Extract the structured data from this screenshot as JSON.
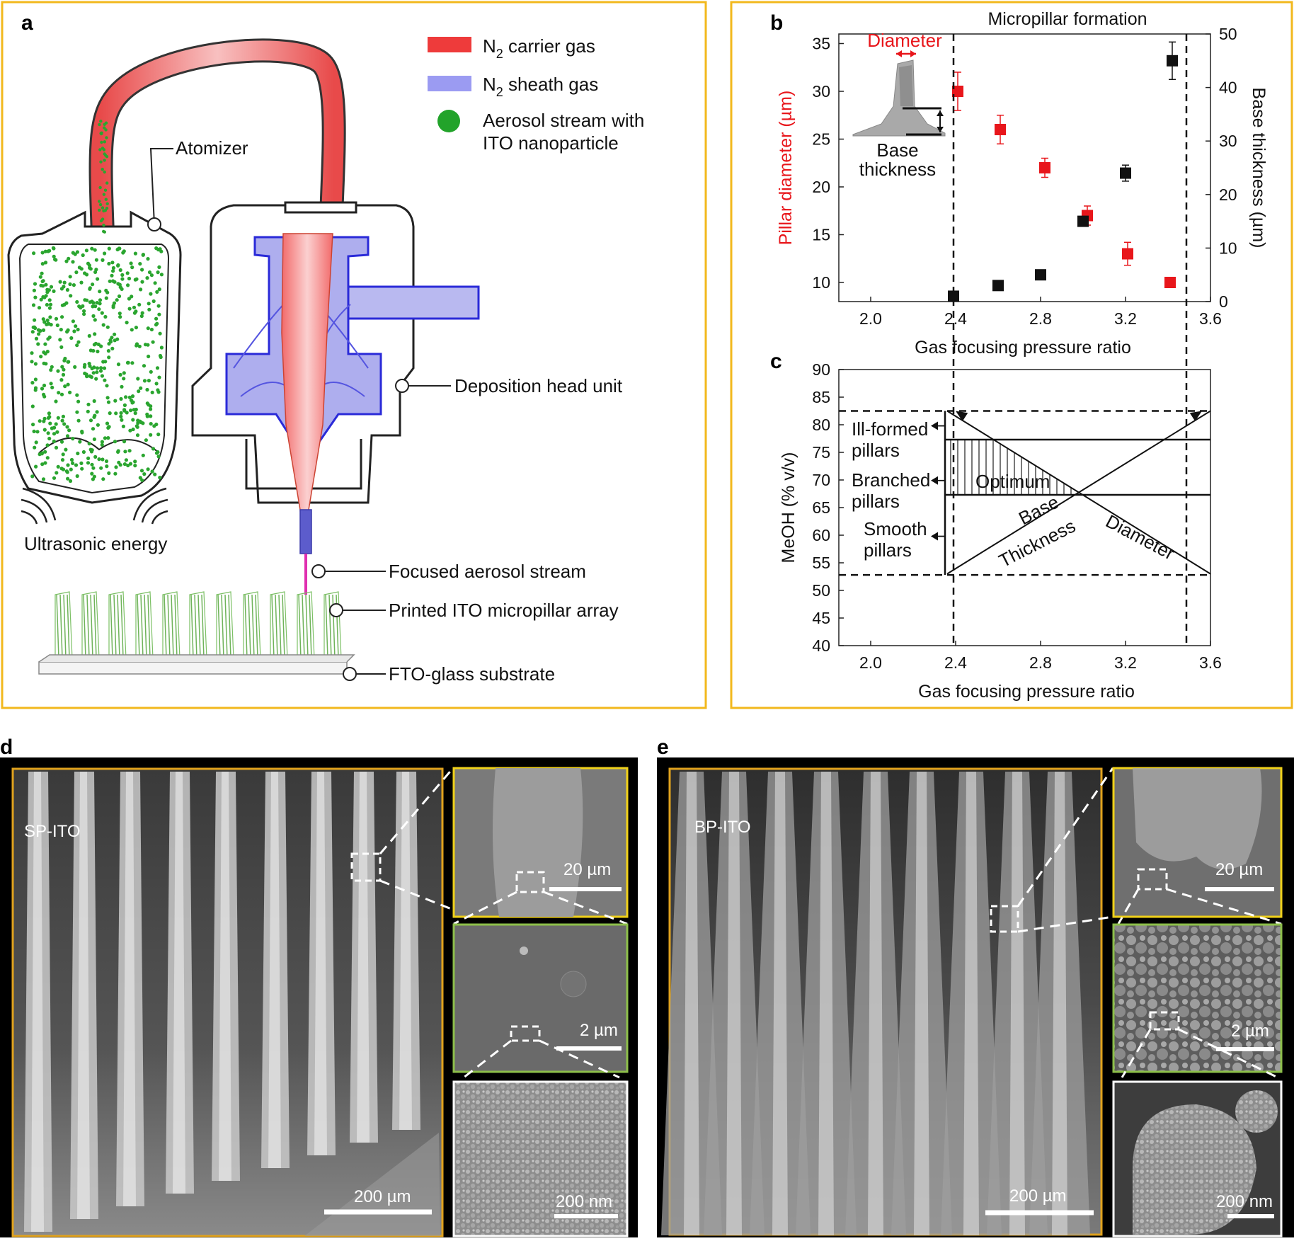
{
  "figure": {
    "panels": {
      "a": {
        "letter": "a",
        "legend": [
          {
            "name": "N",
            "sub": "2",
            "rest": " carrier gas",
            "color": "#ee3b3b"
          },
          {
            "name": "N",
            "sub": "2",
            "rest": " sheath gas",
            "color": "#9b9bf2"
          },
          {
            "name": "Aerosol stream with",
            "line2": "ITO nanoparticle",
            "color": "#22a32a"
          }
        ],
        "callouts": {
          "atomizer": "Atomizer",
          "deposition": "Deposition head unit",
          "ultrasonic": "Ultrasonic energy",
          "focused": "Focused aerosol stream",
          "micropillar": "Printed ITO micropillar array",
          "substrate": "FTO-glass substrate"
        }
      },
      "b": {
        "letter": "b",
        "title": "Micropillar formation",
        "inset": {
          "diameter": "Diameter",
          "base1": "Base",
          "base2": "thickness"
        }
      },
      "c": {
        "letter": "c",
        "labels": {
          "ill1": "Ill-formed",
          "ill2": "pillars",
          "br1": "Branched",
          "br2": "pillars",
          "sm1": "Smooth",
          "sm2": "pillars",
          "optimum": "Optimum",
          "base": "Base",
          "thickness": "Thickness",
          "diameter": "Diameter"
        }
      },
      "d": {
        "letter": "d",
        "sample": "SP-ITO",
        "scales": {
          "main": "200 µm",
          "inset1": "20 µm",
          "inset2": "2 µm",
          "inset3": "200 nm"
        }
      },
      "e": {
        "letter": "e",
        "sample": "BP-ITO",
        "scales": {
          "main": "200 µm",
          "inset1": "20 µm",
          "inset2": "2 µm",
          "inset3": "200 nm"
        }
      }
    }
  },
  "chart_data": [
    {
      "type": "scatter",
      "title": "Micropillar formation",
      "xlabel": "Gas focusing pressure ratio",
      "ylabel": "Pillar diameter (µm)",
      "y2label": "Base thickness (µm)",
      "xlim": [
        1.85,
        3.6
      ],
      "xticks": [
        "2.0",
        "2.4",
        "2.8",
        "3.2",
        "3.6"
      ],
      "ylim": [
        8,
        36
      ],
      "yticks": [
        "10",
        "15",
        "20",
        "25",
        "30",
        "35"
      ],
      "y2lim": [
        0,
        50
      ],
      "y2ticks": [
        "0",
        "10",
        "20",
        "30",
        "40",
        "50"
      ],
      "series": [
        {
          "name": "Pillar diameter",
          "axis": "left",
          "color": "#e8161b",
          "x": [
            2.41,
            2.61,
            2.82,
            3.02,
            3.21,
            3.41
          ],
          "y": [
            30.0,
            26.0,
            22.0,
            17.0,
            13.0,
            10.0
          ],
          "err": [
            2.0,
            1.5,
            1.0,
            1.0,
            1.2,
            0
          ]
        },
        {
          "name": "Base thickness",
          "axis": "right",
          "color": "#111111",
          "x": [
            2.39,
            2.6,
            2.8,
            3.0,
            3.2,
            3.42
          ],
          "y": [
            1.0,
            3.0,
            5.0,
            15.0,
            24.0,
            45.0
          ],
          "err": [
            0,
            0,
            0,
            0,
            1.5,
            3.5
          ]
        }
      ],
      "vlines": [
        2.34,
        3.48
      ]
    },
    {
      "type": "line",
      "xlabel": "Gas focusing pressure ratio",
      "ylabel": "MeOH (% v/v)",
      "xlim": [
        1.85,
        3.6
      ],
      "xticks": [
        "2.0",
        "2.4",
        "2.8",
        "3.2",
        "3.6"
      ],
      "ylim": [
        40,
        90
      ],
      "yticks": [
        "40",
        "45",
        "50",
        "55",
        "60",
        "65",
        "70",
        "75",
        "80",
        "85",
        "90"
      ],
      "hlines": [
        82.5,
        52.8
      ],
      "bands": [
        77.3,
        67.3
      ],
      "lines": [
        {
          "name": "Base Thickness",
          "from": [
            2.36,
            53
          ],
          "to": [
            3.6,
            82.5
          ]
        },
        {
          "name": "Diameter",
          "from": [
            2.36,
            82.5
          ],
          "to": [
            3.6,
            53
          ]
        }
      ],
      "vlines": [
        2.34,
        3.48
      ]
    }
  ]
}
